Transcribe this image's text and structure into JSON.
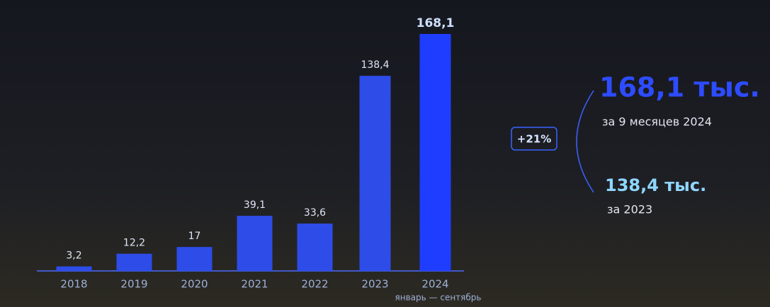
{
  "chart_data": {
    "type": "bar",
    "categories": [
      "2018",
      "2019",
      "2020",
      "2021",
      "2022",
      "2023",
      "2024"
    ],
    "category_note": "январь — сентябрь",
    "values": [
      3.2,
      12.2,
      17,
      39.1,
      33.6,
      138.4,
      168.1
    ],
    "value_labels": [
      "3,2",
      "12,2",
      "17",
      "39,1",
      "33,6",
      "138,4",
      "168,1"
    ],
    "color": "#2d4ce8",
    "annotations": {
      "total_2024": "168,1 тыс.",
      "total_2024_caption": "за 9 месяцев 2024",
      "growth": "+21%",
      "total_2023": "138,4 тыс.",
      "total_2023_caption": "за 2023"
    }
  }
}
